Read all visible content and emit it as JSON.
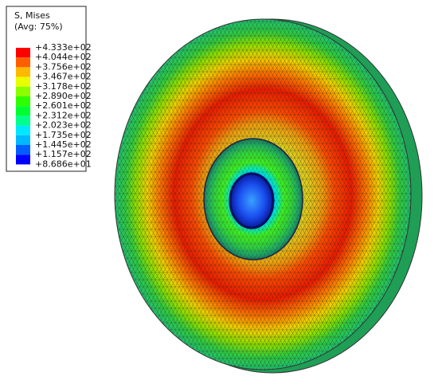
{
  "legend": {
    "title": "S, Mises",
    "subtitle": "(Avg: 75%)",
    "labels": [
      "+4.333e+02",
      "+4.044e+02",
      "+3.756e+02",
      "+3.467e+02",
      "+3.178e+02",
      "+2.890e+02",
      "+2.601e+02",
      "+2.312e+02",
      "+2.023e+02",
      "+1.735e+02",
      "+1.445e+02",
      "+1.157e+02",
      "+8.686e+01"
    ],
    "colors": [
      "#ff0000",
      "#ff5e00",
      "#ffb900",
      "#e9ff00",
      "#8aff00",
      "#2eff00",
      "#00ff2e",
      "#00ff8b",
      "#00e8ff",
      "#00b9ff",
      "#005dff",
      "#0000ff"
    ]
  }
}
